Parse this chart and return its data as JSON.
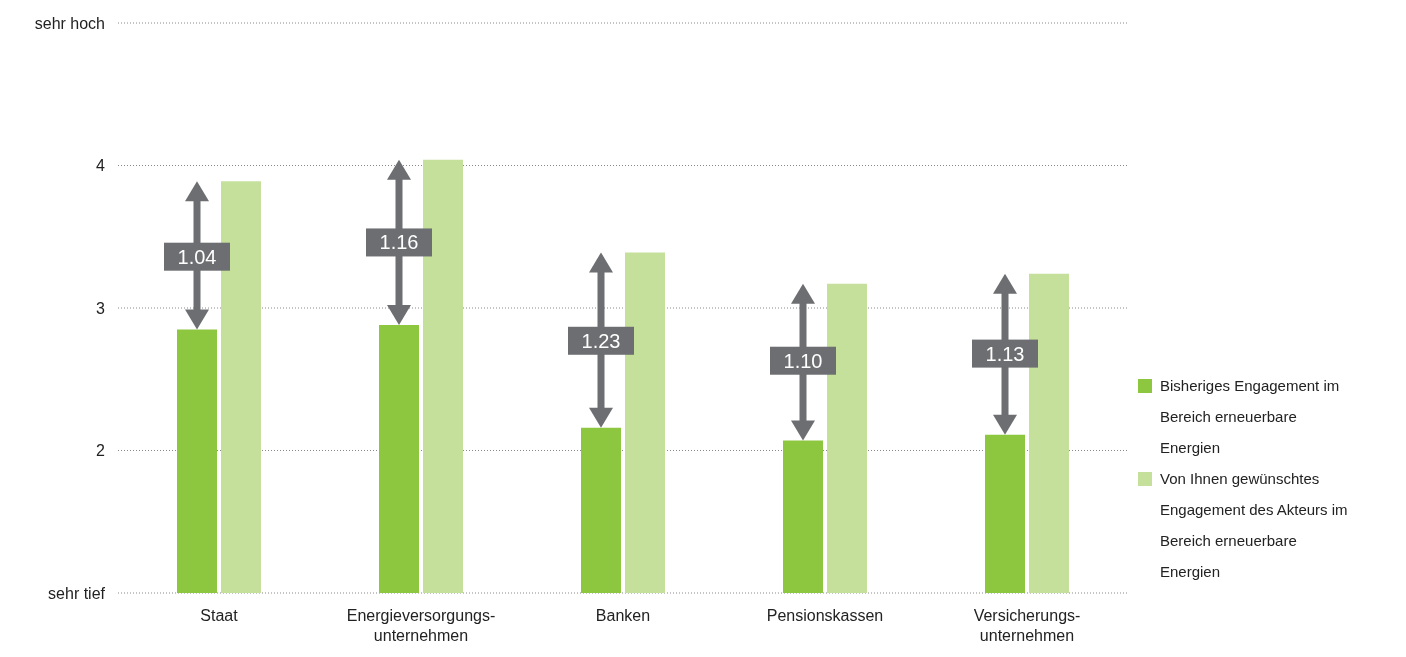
{
  "chart_data": {
    "type": "bar",
    "categories": [
      "Staat",
      "Energieversorgungs-unternehmen",
      "Banken",
      "Pensionskassen",
      "Versicherungs-unternehmen"
    ],
    "series": [
      {
        "name": "Bisheriges Engagement im Bereich erneuerbare Energien",
        "color": "#8dc63f",
        "values": [
          2.85,
          2.88,
          2.16,
          2.07,
          2.11
        ]
      },
      {
        "name": "Von Ihnen gewünschtes Engagement des Akteurs im Bereich erneuerbare Energien",
        "color": "#c5e09b",
        "values": [
          3.89,
          4.04,
          3.39,
          3.17,
          3.24
        ]
      }
    ],
    "ylim": [
      1,
      5
    ],
    "yticks": [
      {
        "value": 1,
        "label": "sehr tief"
      },
      2,
      3,
      4,
      {
        "value": 5,
        "label": "sehr hoch"
      }
    ],
    "grid": "y",
    "legend": "right",
    "annotations": [
      {
        "text": "1.04",
        "x": "Staat",
        "y": 3.36
      },
      {
        "text": "1.16",
        "x": "Energieversorgungs-unternehmen",
        "y": 3.46
      },
      {
        "text": "1.23",
        "x": "Banken",
        "y": 2.77
      },
      {
        "text": "1.10",
        "x": "Pensionskassen",
        "y": 2.63
      },
      {
        "text": "1.13",
        "x": "Versicherungs-unternehmen",
        "y": 2.68
      }
    ]
  }
}
